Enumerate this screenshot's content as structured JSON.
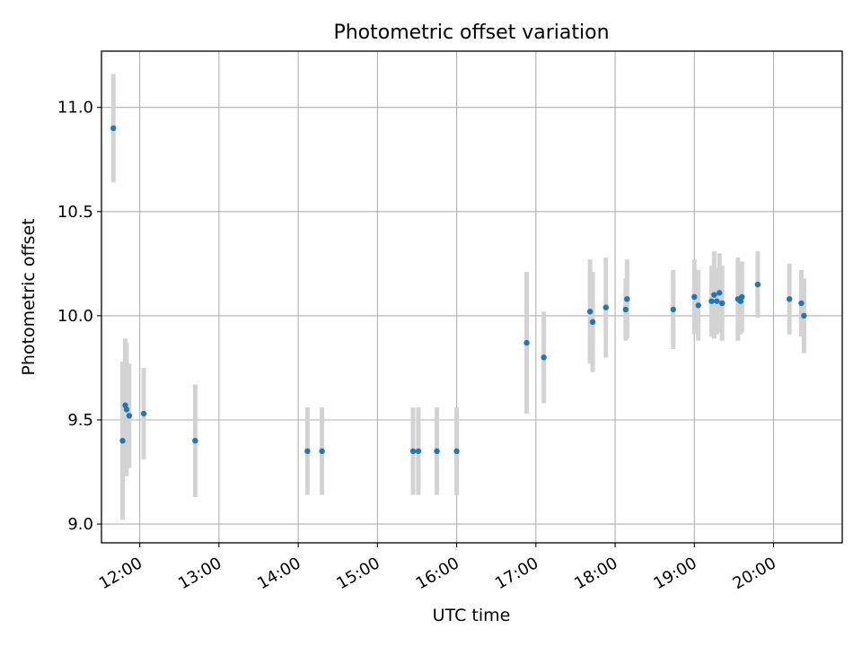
{
  "chart_data": {
    "type": "scatter",
    "title": "Photometric offset variation",
    "xlabel": "UTC time",
    "ylabel": "Photometric offset",
    "x_ticks": [
      "12:00",
      "13:00",
      "14:00",
      "15:00",
      "16:00",
      "17:00",
      "18:00",
      "19:00",
      "20:00"
    ],
    "y_ticks": [
      "9.0",
      "9.5",
      "10.0",
      "10.5",
      "11.0"
    ],
    "xlim": [
      "11:31",
      "20:52"
    ],
    "ylim": [
      8.91,
      11.27
    ],
    "grid": true,
    "marker_color": "#1f77b4",
    "errorbar_color": "#d3d3d3",
    "points": [
      {
        "x": "11:40",
        "y": 10.9,
        "err": 0.26
      },
      {
        "x": "11:47",
        "y": 9.4,
        "err": 0.38
      },
      {
        "x": "11:49",
        "y": 9.57,
        "err": 0.32
      },
      {
        "x": "11:50",
        "y": 9.55,
        "err": 0.32
      },
      {
        "x": "11:52",
        "y": 9.52,
        "err": 0.25
      },
      {
        "x": "12:03",
        "y": 9.53,
        "err": 0.22
      },
      {
        "x": "12:42",
        "y": 9.4,
        "err": 0.27
      },
      {
        "x": "14:07",
        "y": 9.35,
        "err": 0.21
      },
      {
        "x": "14:18",
        "y": 9.35,
        "err": 0.21
      },
      {
        "x": "15:27",
        "y": 9.35,
        "err": 0.21
      },
      {
        "x": "15:31",
        "y": 9.35,
        "err": 0.21
      },
      {
        "x": "15:45",
        "y": 9.35,
        "err": 0.21
      },
      {
        "x": "16:00",
        "y": 9.35,
        "err": 0.21
      },
      {
        "x": "16:53",
        "y": 9.87,
        "err": 0.34
      },
      {
        "x": "17:06",
        "y": 9.8,
        "err": 0.22
      },
      {
        "x": "17:41",
        "y": 10.02,
        "err": 0.25
      },
      {
        "x": "17:43",
        "y": 9.97,
        "err": 0.24
      },
      {
        "x": "17:53",
        "y": 10.04,
        "err": 0.24
      },
      {
        "x": "18:08",
        "y": 10.03,
        "err": 0.15
      },
      {
        "x": "18:09",
        "y": 10.08,
        "err": 0.19
      },
      {
        "x": "18:44",
        "y": 10.03,
        "err": 0.19
      },
      {
        "x": "19:00",
        "y": 10.09,
        "err": 0.18
      },
      {
        "x": "19:03",
        "y": 10.05,
        "err": 0.17
      },
      {
        "x": "19:13",
        "y": 10.07,
        "err": 0.17
      },
      {
        "x": "19:15",
        "y": 10.1,
        "err": 0.21
      },
      {
        "x": "19:17",
        "y": 10.07,
        "err": 0.16
      },
      {
        "x": "19:19",
        "y": 10.11,
        "err": 0.19
      },
      {
        "x": "19:21",
        "y": 10.06,
        "err": 0.18
      },
      {
        "x": "19:33",
        "y": 10.08,
        "err": 0.2
      },
      {
        "x": "19:35",
        "y": 10.07,
        "err": 0.16
      },
      {
        "x": "19:36",
        "y": 10.09,
        "err": 0.17
      },
      {
        "x": "19:48",
        "y": 10.15,
        "err": 0.16
      },
      {
        "x": "20:12",
        "y": 10.08,
        "err": 0.17
      },
      {
        "x": "20:21",
        "y": 10.06,
        "err": 0.16
      },
      {
        "x": "20:23",
        "y": 10.0,
        "err": 0.18
      }
    ]
  }
}
